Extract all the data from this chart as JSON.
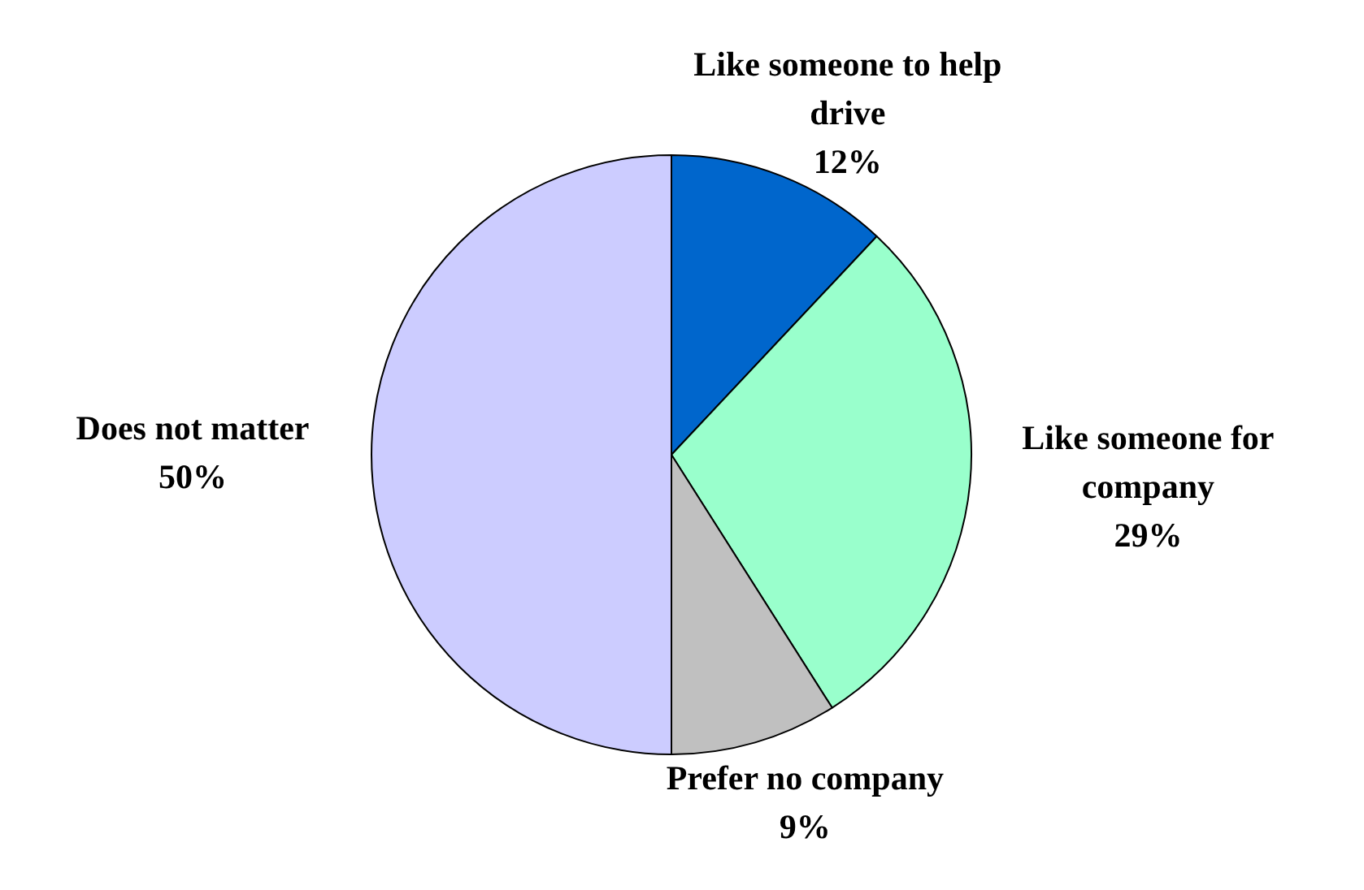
{
  "chart_data": {
    "type": "pie",
    "categories": [
      "Like someone to help drive",
      "Like someone for company",
      "Prefer no company",
      "Does not matter"
    ],
    "values": [
      12,
      29,
      9,
      50
    ],
    "value_labels": [
      "12%",
      "29%",
      "9%",
      "50%"
    ],
    "colors": [
      "#0066cc",
      "#99ffcc",
      "#c0c0c0",
      "#ccccff"
    ],
    "legend": false
  }
}
